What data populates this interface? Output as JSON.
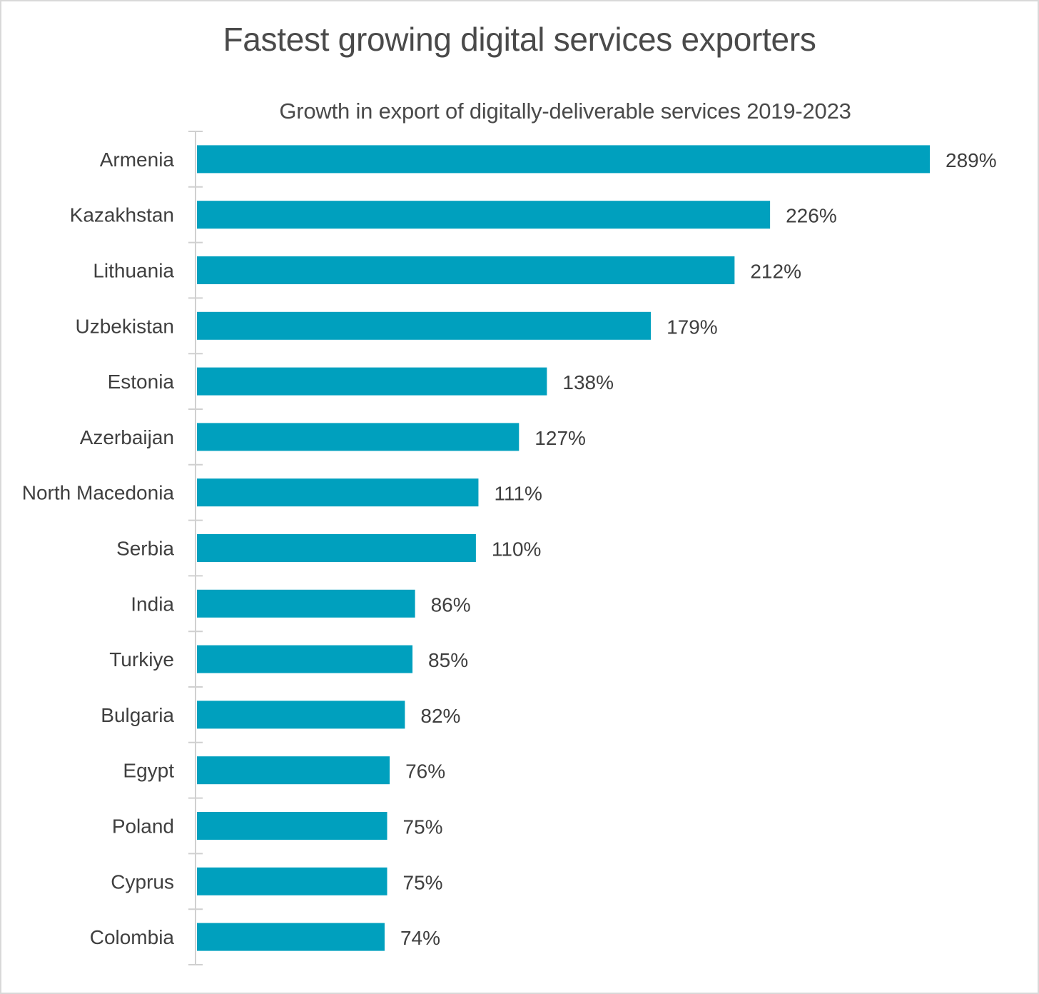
{
  "chart_data": {
    "type": "bar",
    "orientation": "horizontal",
    "title": "Fastest growing digital services exporters",
    "subtitle": "Growth in export of digitally-deliverable services 2019-2023",
    "categories": [
      "Armenia",
      "Kazakhstan",
      "Lithuania",
      "Uzbekistan",
      "Estonia",
      "Azerbaijan",
      "North Macedonia",
      "Serbia",
      "India",
      "Turkiye",
      "Bulgaria",
      "Egypt",
      "Poland",
      "Cyprus",
      "Colombia"
    ],
    "values": [
      289,
      226,
      212,
      179,
      138,
      127,
      111,
      110,
      86,
      85,
      82,
      76,
      75,
      75,
      74
    ],
    "data_labels": [
      "289%",
      "226%",
      "212%",
      "179%",
      "138%",
      "127%",
      "111%",
      "110%",
      "86%",
      "85%",
      "82%",
      "76%",
      "75%",
      "75%",
      "74%"
    ],
    "unit": "%",
    "xlim": [
      0,
      289
    ],
    "grid": false,
    "legend": "none",
    "colors": {
      "bar": "#00A0BE",
      "axis": "#d0d0d0",
      "text": "#3f3f3f",
      "border": "#d9d9d9"
    }
  }
}
